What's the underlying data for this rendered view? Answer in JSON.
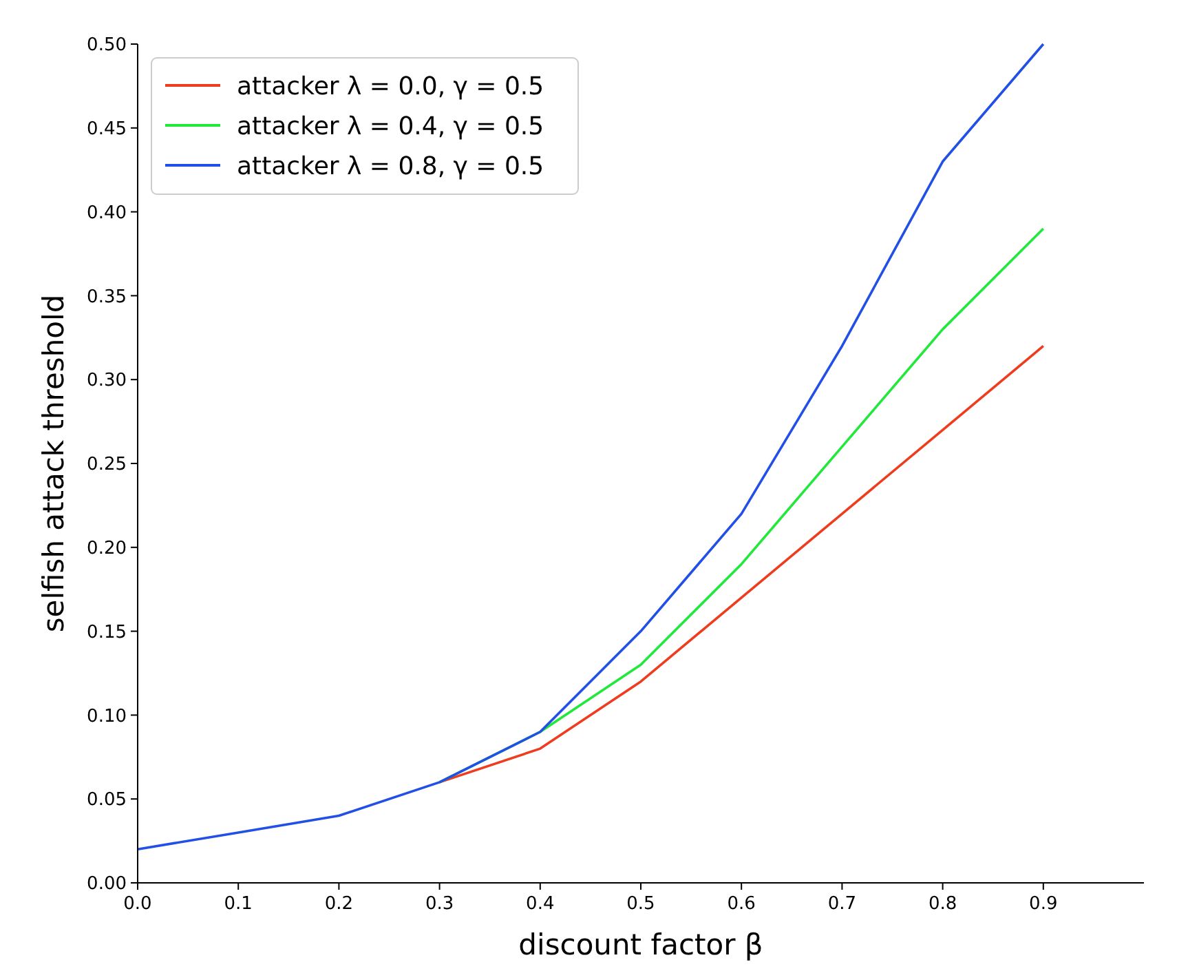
{
  "chart_data": {
    "type": "line",
    "xlabel": "discount factor β",
    "ylabel": "selfish attack threshold",
    "x": [
      0,
      0.1,
      0.2,
      0.3,
      0.4,
      0.5,
      0.6,
      0.7,
      0.8,
      0.9
    ],
    "series": [
      {
        "name": "attacker λ = 0.0, γ = 0.5",
        "color": "#f03c1e",
        "values": [
          null,
          null,
          null,
          0.06,
          0.08,
          0.12,
          0.17,
          0.22,
          0.27,
          0.32
        ]
      },
      {
        "name": "attacker λ = 0.4, γ = 0.5",
        "color": "#22e83c",
        "values": [
          null,
          null,
          null,
          0.06,
          0.09,
          0.13,
          0.19,
          0.26,
          0.33,
          0.39
        ]
      },
      {
        "name": "attacker λ = 0.8, γ = 0.5",
        "color": "#2250e6",
        "values": [
          0.02,
          0.03,
          0.04,
          0.06,
          0.09,
          0.15,
          0.22,
          0.32,
          0.43,
          0.5
        ]
      }
    ],
    "xlim": [
      0,
      1.0
    ],
    "xticks": [
      {
        "value": 0,
        "label": "0.0"
      },
      {
        "value": 0.1,
        "label": "0.1"
      },
      {
        "value": 0.2,
        "label": "0.2"
      },
      {
        "value": 0.3,
        "label": "0.3"
      },
      {
        "value": 0.4,
        "label": "0.4"
      },
      {
        "value": 0.5,
        "label": "0.5"
      },
      {
        "value": 0.6,
        "label": "0.6"
      },
      {
        "value": 0.7,
        "label": "0.7"
      },
      {
        "value": 0.8,
        "label": "0.8"
      },
      {
        "value": 0.9,
        "label": "0.9"
      }
    ],
    "ylim": [
      0,
      0.5
    ],
    "yticks": [
      {
        "value": 0,
        "label": "0.00"
      },
      {
        "value": 0.05,
        "label": "0.05"
      },
      {
        "value": 0.1,
        "label": "0.10"
      },
      {
        "value": 0.15,
        "label": "0.15"
      },
      {
        "value": 0.2,
        "label": "0.20"
      },
      {
        "value": 0.25,
        "label": "0.25"
      },
      {
        "value": 0.3,
        "label": "0.30"
      },
      {
        "value": 0.35,
        "label": "0.35"
      },
      {
        "value": 0.4,
        "label": "0.40"
      },
      {
        "value": 0.45,
        "label": "0.45"
      },
      {
        "value": 0.5,
        "label": "0.50"
      }
    ],
    "legend": "top left",
    "grid": false,
    "marker": "none",
    "line_style": "solid"
  }
}
